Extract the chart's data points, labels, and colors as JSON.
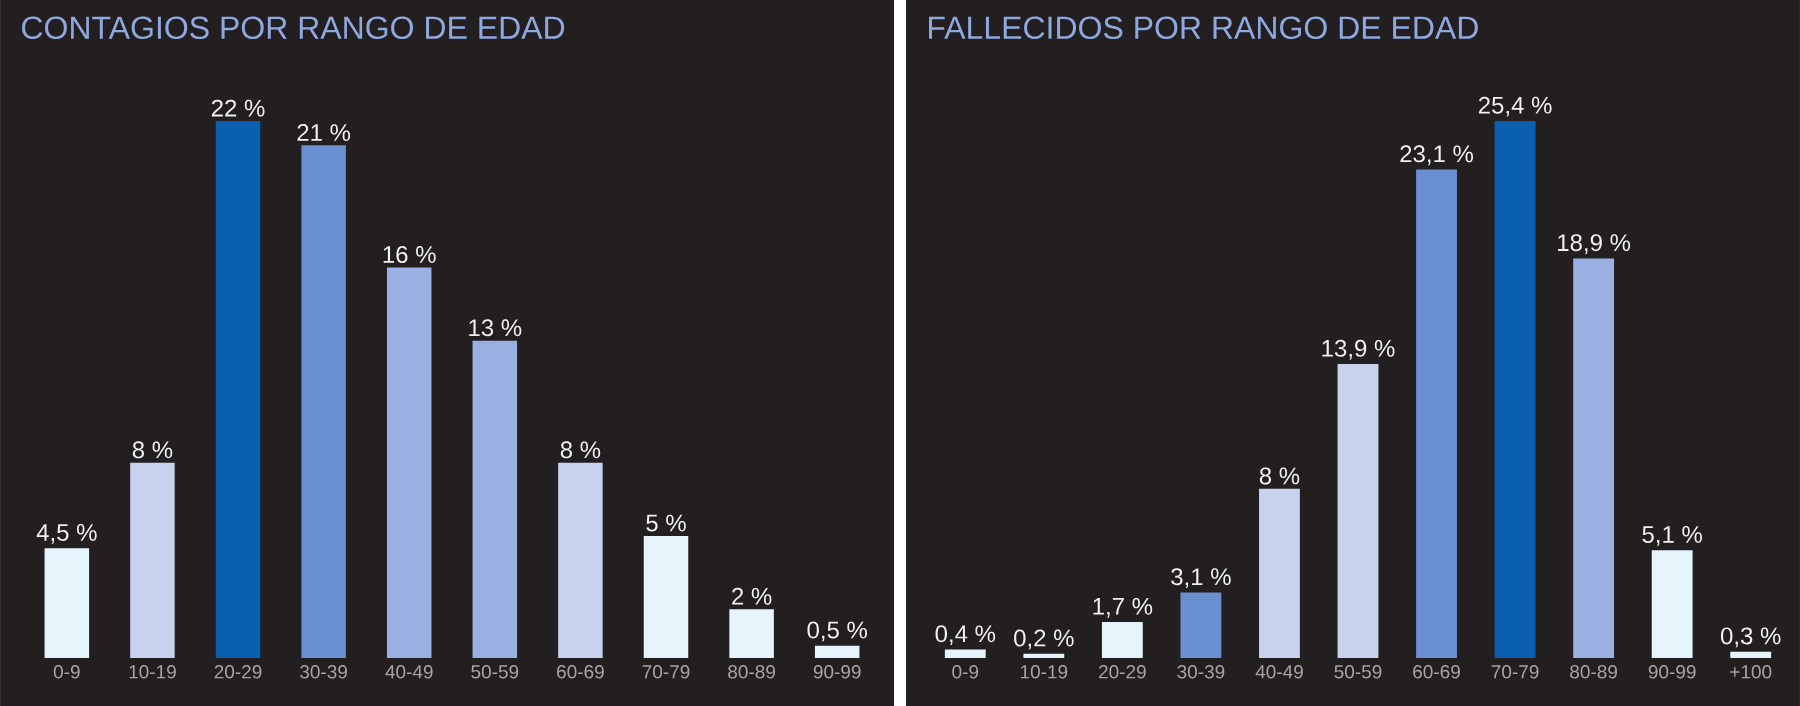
{
  "chart_data": [
    {
      "type": "bar",
      "title": "CONTAGIOS POR RANGO DE EDAD",
      "categories": [
        "0-9",
        "10-19",
        "20-29",
        "30-39",
        "40-49",
        "50-59",
        "60-69",
        "70-79",
        "80-89",
        "90-99"
      ],
      "values": [
        4.5,
        8,
        22,
        21,
        16,
        13,
        8,
        5,
        2,
        0.5
      ],
      "value_labels": [
        "4,5 %",
        "8 %",
        "22 %",
        "21 %",
        "16 %",
        "13 %",
        "8 %",
        "5 %",
        "2 %",
        "0,5 %"
      ],
      "colors": [
        "#e6f4fb",
        "#c8d2ee",
        "#0a5fb0",
        "#6b90d2",
        "#9bb0e2",
        "#9bb0e2",
        "#c8d2ee",
        "#e6f4fb",
        "#e6f4fb",
        "#e6f4fb"
      ]
    },
    {
      "type": "bar",
      "title": "FALLECIDOS POR RANGO DE EDAD",
      "categories": [
        "0-9",
        "10-19",
        "20-29",
        "30-39",
        "40-49",
        "50-59",
        "60-69",
        "70-79",
        "80-89",
        "90-99",
        "+100"
      ],
      "values": [
        0.4,
        0.2,
        1.7,
        3.1,
        8,
        13.9,
        23.1,
        25.4,
        18.9,
        5.1,
        0.3
      ],
      "value_labels": [
        "0,4 %",
        "0,2 %",
        "1,7 %",
        "3,1 %",
        "8 %",
        "13,9 %",
        "23,1 %",
        "25,4 %",
        "18,9 %",
        "5,1 %",
        "0,3 %"
      ],
      "colors": [
        "#e6f4fb",
        "#e6f4fb",
        "#e6f4fb",
        "#6b90d2",
        "#c8d2ee",
        "#c8d2ee",
        "#6b90d2",
        "#0a5fb0",
        "#9bb0e2",
        "#e6f4fb",
        "#e6f4fb"
      ]
    }
  ]
}
